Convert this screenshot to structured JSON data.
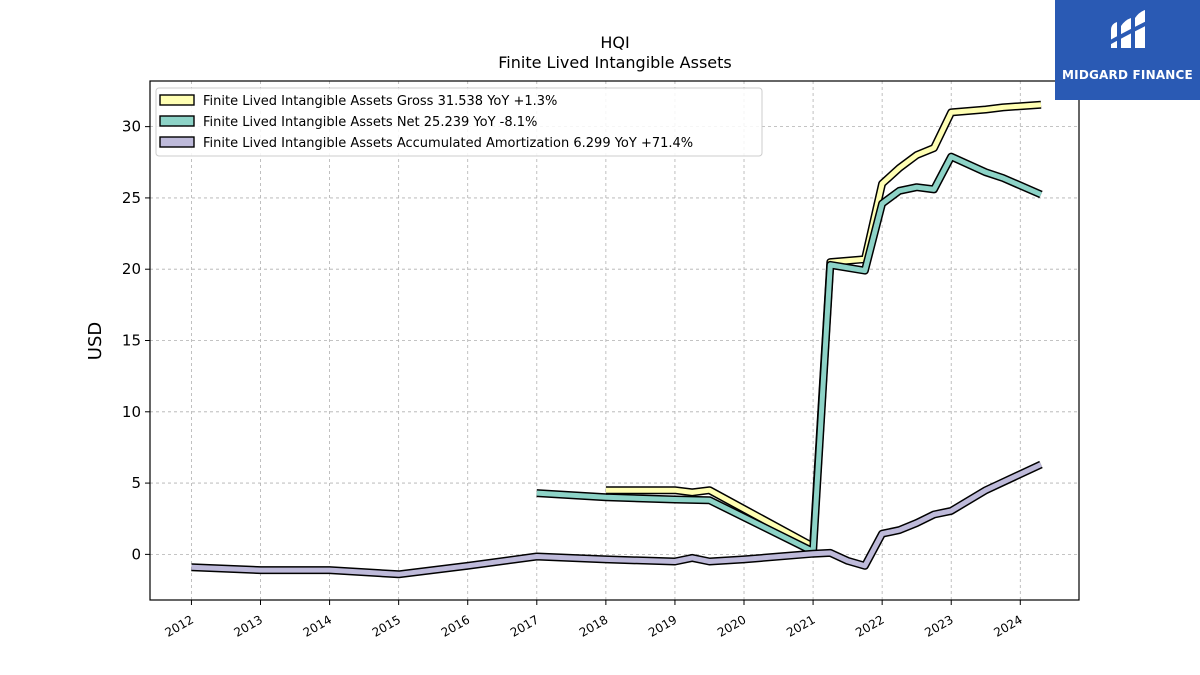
{
  "brand": {
    "name": "MIDGARD FINANCE",
    "bg_color": "#2a5ab4"
  },
  "chart_data": {
    "type": "line",
    "title": "HQI",
    "subtitle": "Finite Lived Intangible Assets",
    "ylabel": "USD",
    "xlabel": "",
    "xlim": [
      2011.4,
      2024.85
    ],
    "ylim": [
      -3.2,
      33.2
    ],
    "x_ticks": [
      "2012",
      "2013",
      "2014",
      "2015",
      "2016",
      "2017",
      "2018",
      "2019",
      "2020",
      "2021",
      "2022",
      "2023",
      "2024"
    ],
    "y_ticks": [
      "0",
      "5",
      "10",
      "15",
      "20",
      "25",
      "30"
    ],
    "grid": true,
    "legend_position": "top-left",
    "series": [
      {
        "name": "Finite Lived Intangible Assets Gross  31.538 YoY +1.3%",
        "color": "#ffffb3",
        "x": [
          2018.0,
          2019.0,
          2019.25,
          2019.5,
          2021.0,
          2021.25,
          2021.75,
          2022.0,
          2022.25,
          2022.5,
          2022.75,
          2023.0,
          2023.5,
          2023.75,
          2024.3
        ],
        "y": [
          4.5,
          4.5,
          4.35,
          4.5,
          0.55,
          20.5,
          20.7,
          26.0,
          27.1,
          28.0,
          28.5,
          31.0,
          31.2,
          31.35,
          31.54
        ]
      },
      {
        "name": "Finite Lived Intangible Assets Net  25.239 YoY -8.1%",
        "color": "#8dd3c7",
        "x": [
          2017.0,
          2018.0,
          2019.0,
          2019.5,
          2021.0,
          2021.25,
          2021.75,
          2022.0,
          2022.25,
          2022.5,
          2022.75,
          2023.0,
          2023.5,
          2023.75,
          2024.3
        ],
        "y": [
          4.3,
          4.0,
          3.85,
          3.8,
          0.2,
          20.3,
          19.9,
          24.6,
          25.5,
          25.75,
          25.6,
          27.9,
          26.8,
          26.4,
          25.24
        ]
      },
      {
        "name": "Finite Lived Intangible Assets Accumulated Amortization  6.299 YoY +71.4%",
        "color": "#bebada",
        "x": [
          2012.0,
          2013.0,
          2014.0,
          2015.0,
          2016.0,
          2017.0,
          2018.0,
          2019.0,
          2019.25,
          2019.5,
          2020.0,
          2021.0,
          2021.25,
          2021.5,
          2021.75,
          2022.0,
          2022.25,
          2022.5,
          2022.75,
          2023.0,
          2023.5,
          2024.3
        ],
        "y": [
          -0.9,
          -1.1,
          -1.1,
          -1.4,
          -0.8,
          -0.15,
          -0.35,
          -0.5,
          -0.25,
          -0.5,
          -0.35,
          0.05,
          0.1,
          -0.45,
          -0.8,
          1.45,
          1.7,
          2.2,
          2.8,
          3.05,
          4.5,
          6.3
        ]
      }
    ]
  }
}
